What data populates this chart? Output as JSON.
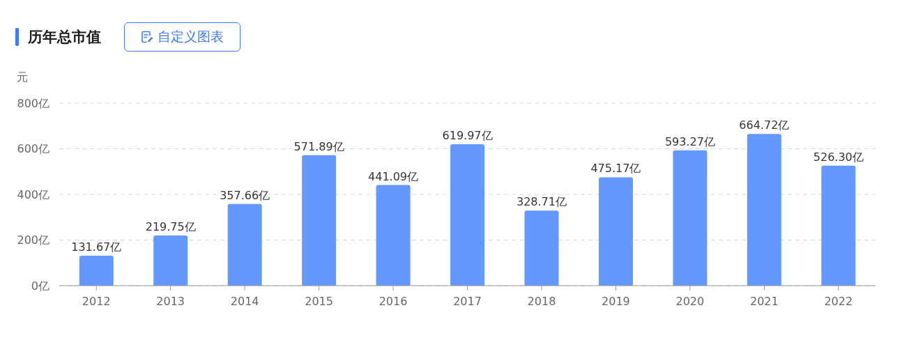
{
  "chart_data": {
    "type": "bar",
    "title": "历年总市值",
    "ylabel": "元",
    "annotations": [
      "自定义图表"
    ],
    "categories": [
      "2012",
      "2013",
      "2014",
      "2015",
      "2016",
      "2017",
      "2018",
      "2019",
      "2020",
      "2021",
      "2022"
    ],
    "values": [
      131.67,
      219.75,
      357.66,
      571.89,
      441.09,
      619.97,
      328.71,
      475.17,
      593.27,
      664.72,
      526.3
    ],
    "value_labels": [
      "131.67亿",
      "219.75亿",
      "357.66亿",
      "571.89亿",
      "441.09亿",
      "619.97亿",
      "328.71亿",
      "475.17亿",
      "593.27亿",
      "664.72亿",
      "526.30亿"
    ],
    "color": "#6598fe",
    "ylim": [
      0,
      800
    ],
    "yticks": [
      {
        "value": 0,
        "label": "0亿"
      },
      {
        "value": 200,
        "label": "200亿"
      },
      {
        "value": 400,
        "label": "400亿"
      },
      {
        "value": 600,
        "label": "600亿"
      },
      {
        "value": 800,
        "label": "800亿"
      }
    ],
    "grid": "y"
  }
}
